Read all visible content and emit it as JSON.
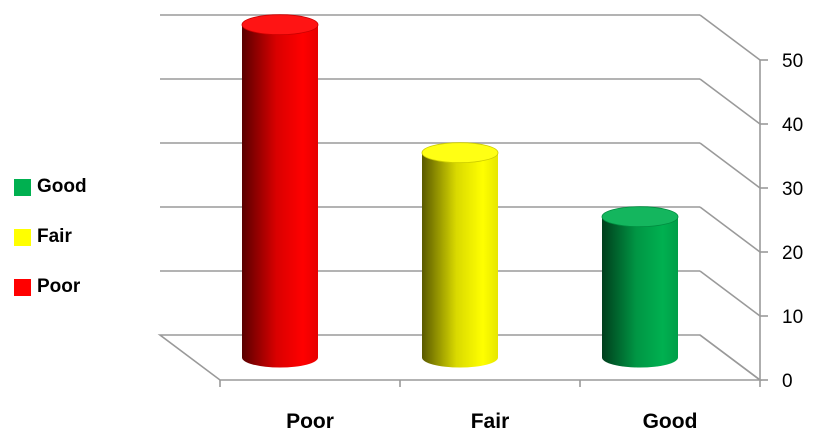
{
  "chart_data": {
    "type": "bar",
    "style": "3d-cylinder",
    "categories": [
      "Poor",
      "Fair",
      "Good"
    ],
    "values": [
      52,
      32,
      22
    ],
    "colors": {
      "Poor": "#ff0000",
      "Fair": "#ffff00",
      "Good": "#00b050"
    },
    "ylim": [
      0,
      50
    ],
    "y_ticks": [
      "0",
      "10",
      "20",
      "30",
      "40",
      "50"
    ],
    "y_axis_side": "right",
    "grid": true,
    "legend": {
      "position": "left",
      "items": [
        {
          "label": "Good",
          "color": "#00b050"
        },
        {
          "label": "Fair",
          "color": "#ffff00"
        },
        {
          "label": "Poor",
          "color": "#ff0000"
        }
      ]
    },
    "title": "",
    "xlabel": "",
    "ylabel": ""
  }
}
